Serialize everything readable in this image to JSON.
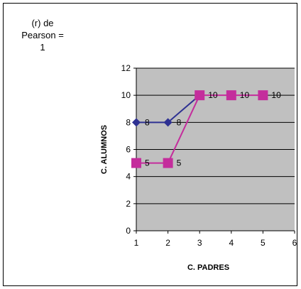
{
  "note": {
    "line1": "(r) de",
    "line2": "Pearson =",
    "line3": "1"
  },
  "chart_data": {
    "type": "line",
    "xlabel": "C. PADRES",
    "ylabel": "C. ALUMNOS",
    "xlim": [
      1,
      6
    ],
    "ylim": [
      0,
      12
    ],
    "x_ticks": [
      1,
      2,
      3,
      4,
      5,
      6
    ],
    "y_ticks": [
      0,
      2,
      4,
      6,
      8,
      10,
      12
    ],
    "grid": "horizontal",
    "plot_background": "#c0c0c0",
    "series": [
      {
        "marker": "diamond",
        "color": "#2e3192",
        "points": [
          [
            1,
            8
          ],
          [
            2,
            8
          ],
          [
            3,
            10
          ]
        ],
        "data_labels": [
          "8",
          "8",
          null
        ]
      },
      {
        "marker": "square",
        "color": "#c42d9c",
        "points": [
          [
            1,
            5
          ],
          [
            2,
            5
          ],
          [
            3,
            10
          ],
          [
            4,
            10
          ],
          [
            5,
            10
          ]
        ],
        "data_labels": [
          "5",
          "5",
          "10",
          "10",
          "10"
        ]
      }
    ]
  }
}
